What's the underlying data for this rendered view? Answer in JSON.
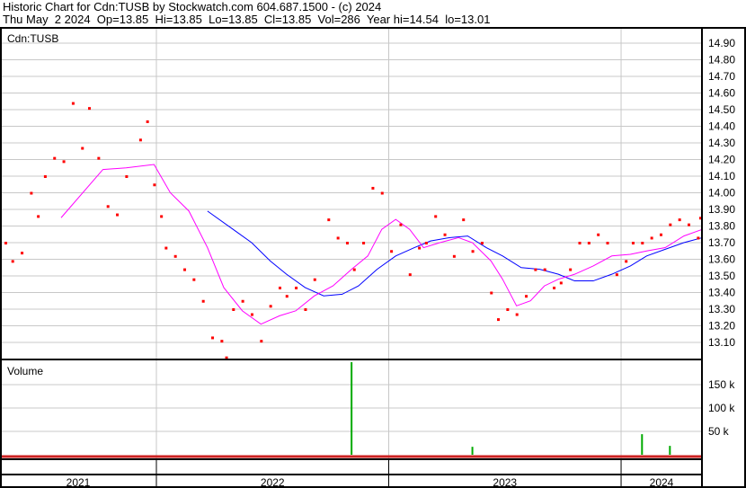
{
  "header": {
    "title": "Historic Chart for Cdn:TUSB by Stockwatch.com 604.687.1500 - (c) 2024",
    "quote": "Thu May  2 2024  Op=13.85  Hi=13.85  Lo=13.85  Cl=13.85  Vol=286  Year hi=14.54  lo=13.01"
  },
  "chart_data": [
    {
      "type": "scatter",
      "title": "Cdn:TUSB",
      "xlim": [
        2021.327,
        2024.348
      ],
      "ylim": [
        13.0,
        15.0
      ],
      "y_ticks": [
        "14.90",
        "14.80",
        "14.70",
        "14.60",
        "14.50",
        "14.40",
        "14.30",
        "14.20",
        "14.10",
        "14.00",
        "13.90",
        "13.80",
        "13.70",
        "13.60",
        "13.50",
        "13.40",
        "13.30",
        "13.20",
        "13.10"
      ],
      "x_tick_labels": [
        "2021",
        "2022",
        "2023",
        "2024"
      ],
      "x_boundaries": [
        2022,
        2023,
        2024
      ],
      "grid": true,
      "colors": {
        "close": "#ff0000",
        "ma_short": "#ff00ff",
        "ma_long": "#0000ff",
        "volume": "#00aa00"
      },
      "close": {
        "x": [
          2021.35,
          2021.38,
          2021.42,
          2021.46,
          2021.49,
          2021.52,
          2021.56,
          2021.6,
          2021.64,
          2021.68,
          2021.71,
          2021.75,
          2021.79,
          2021.83,
          2021.87,
          2021.93,
          2021.96,
          2021.99,
          2022.02,
          2022.04,
          2022.08,
          2022.12,
          2022.16,
          2022.2,
          2022.24,
          2022.28,
          2022.3,
          2022.33,
          2022.37,
          2022.41,
          2022.45,
          2022.49,
          2022.53,
          2022.56,
          2022.6,
          2022.64,
          2022.68,
          2022.74,
          2022.78,
          2022.82,
          2022.85,
          2022.89,
          2022.93,
          2022.97,
          2023.01,
          2023.05,
          2023.09,
          2023.13,
          2023.16,
          2023.2,
          2023.24,
          2023.28,
          2023.32,
          2023.36,
          2023.4,
          2023.44,
          2023.47,
          2023.51,
          2023.55,
          2023.59,
          2023.63,
          2023.67,
          2023.71,
          2023.74,
          2023.78,
          2023.82,
          2023.86,
          2023.9,
          2023.94,
          2023.98,
          2024.02,
          2024.05,
          2024.09,
          2024.13,
          2024.17,
          2024.21,
          2024.25,
          2024.29,
          2024.33,
          2024.34
        ],
        "y": [
          13.7,
          13.59,
          13.64,
          14.0,
          13.86,
          14.1,
          14.21,
          14.19,
          14.54,
          14.27,
          14.51,
          14.21,
          13.92,
          13.87,
          14.1,
          14.32,
          14.43,
          14.05,
          13.86,
          13.67,
          13.62,
          13.54,
          13.48,
          13.35,
          13.13,
          13.11,
          13.01,
          13.3,
          13.35,
          13.27,
          13.11,
          13.32,
          13.43,
          13.38,
          13.43,
          13.3,
          13.48,
          13.84,
          13.73,
          13.7,
          13.54,
          13.7,
          14.03,
          14.0,
          13.65,
          13.81,
          13.51,
          13.67,
          13.7,
          13.86,
          13.75,
          13.62,
          13.84,
          13.65,
          13.7,
          13.4,
          13.24,
          13.3,
          13.27,
          13.38,
          13.54,
          13.54,
          13.43,
          13.46,
          13.54,
          13.7,
          13.7,
          13.75,
          13.7,
          13.51,
          13.59,
          13.7,
          13.7,
          13.73,
          13.75,
          13.81,
          13.84,
          13.81,
          13.73,
          13.85
        ]
      },
      "ma_short": {
        "x": [
          2021.59,
          2021.77,
          2021.87,
          2021.99,
          2022.06,
          2022.14,
          2022.22,
          2022.29,
          2022.37,
          2022.45,
          2022.53,
          2022.6,
          2022.68,
          2022.76,
          2022.84,
          2022.91,
          2022.97,
          2023.03,
          2023.09,
          2023.15,
          2023.22,
          2023.3,
          2023.36,
          2023.44,
          2023.49,
          2023.55,
          2023.61,
          2023.67,
          2023.73,
          2023.8,
          2023.88,
          2023.96,
          2024.04,
          2024.11,
          2024.19,
          2024.27,
          2024.35
        ],
        "y": [
          13.85,
          14.14,
          14.15,
          14.17,
          14.0,
          13.89,
          13.67,
          13.43,
          13.29,
          13.21,
          13.26,
          13.29,
          13.38,
          13.44,
          13.54,
          13.62,
          13.78,
          13.84,
          13.78,
          13.67,
          13.7,
          13.73,
          13.7,
          13.59,
          13.48,
          13.32,
          13.35,
          13.44,
          13.48,
          13.51,
          13.56,
          13.62,
          13.63,
          13.65,
          13.67,
          13.74,
          13.78
        ]
      },
      "ma_long": {
        "x": [
          2022.22,
          2022.33,
          2022.41,
          2022.49,
          2022.56,
          2022.64,
          2022.72,
          2022.8,
          2022.87,
          2022.95,
          2023.03,
          2023.11,
          2023.18,
          2023.26,
          2023.34,
          2023.42,
          2023.49,
          2023.57,
          2023.65,
          2023.73,
          2023.8,
          2023.88,
          2023.96,
          2024.04,
          2024.11,
          2024.19,
          2024.27,
          2024.35
        ],
        "y": [
          13.89,
          13.78,
          13.7,
          13.59,
          13.51,
          13.43,
          13.38,
          13.39,
          13.44,
          13.54,
          13.62,
          13.67,
          13.71,
          13.73,
          13.74,
          13.67,
          13.62,
          13.55,
          13.54,
          13.51,
          13.47,
          13.47,
          13.51,
          13.56,
          13.62,
          13.66,
          13.7,
          13.73
        ]
      }
    },
    {
      "type": "bar",
      "title": "Volume",
      "ylim": [
        0,
        200000
      ],
      "y_ticks": [
        "150 k",
        "100 k",
        "50 k"
      ],
      "x": [
        2022.84,
        2023.36,
        2024.09,
        2024.21
      ],
      "values": [
        198000,
        17000,
        44000,
        19000
      ]
    }
  ]
}
